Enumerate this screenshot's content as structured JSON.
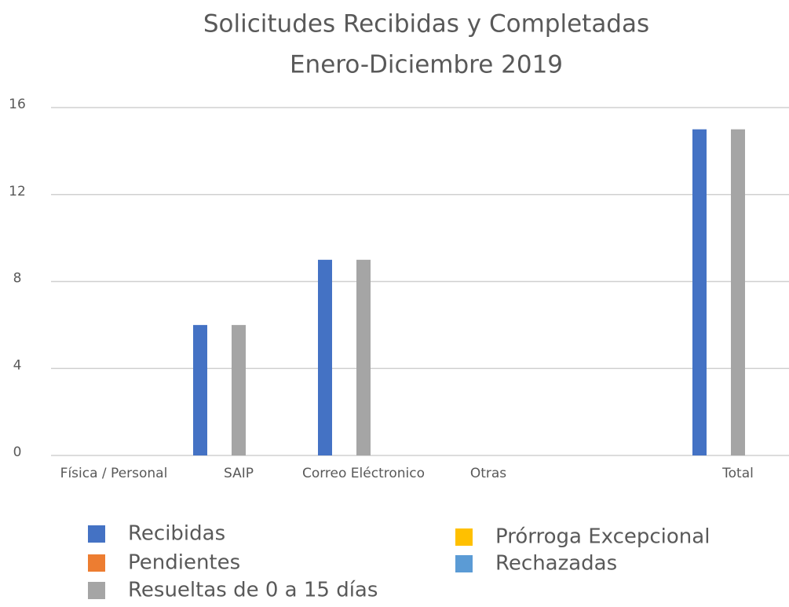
{
  "chart_data": {
    "type": "bar",
    "title": "Solicitudes Recibidas y Completadas",
    "subtitle": "Enero-Diciembre 2019",
    "categories": [
      "Física / Personal",
      "SAIP",
      "Correo Eléctronico",
      "Otras",
      null,
      "Total"
    ],
    "series": [
      {
        "name": "Recibidas",
        "color": "#4472c4",
        "values": [
          0,
          6,
          9,
          0,
          null,
          15
        ]
      },
      {
        "name": "Pendientes",
        "color": "#ed7d31",
        "values": [
          0,
          0,
          0,
          0,
          null,
          0
        ]
      },
      {
        "name": "Resueltas de 0 a 15 días",
        "color": "#a5a5a5",
        "values": [
          0,
          6,
          9,
          0,
          null,
          15
        ]
      },
      {
        "name": "Prórroga Excepcional",
        "color": "#ffc000",
        "values": [
          0,
          0,
          0,
          0,
          null,
          0
        ]
      },
      {
        "name": "Rechazadas",
        "color": "#5b9bd5",
        "values": [
          0,
          0,
          0,
          0,
          null,
          0
        ]
      }
    ],
    "ylim": [
      0,
      16
    ],
    "yticks": [
      0,
      4,
      8,
      12,
      16
    ],
    "grid": true
  }
}
